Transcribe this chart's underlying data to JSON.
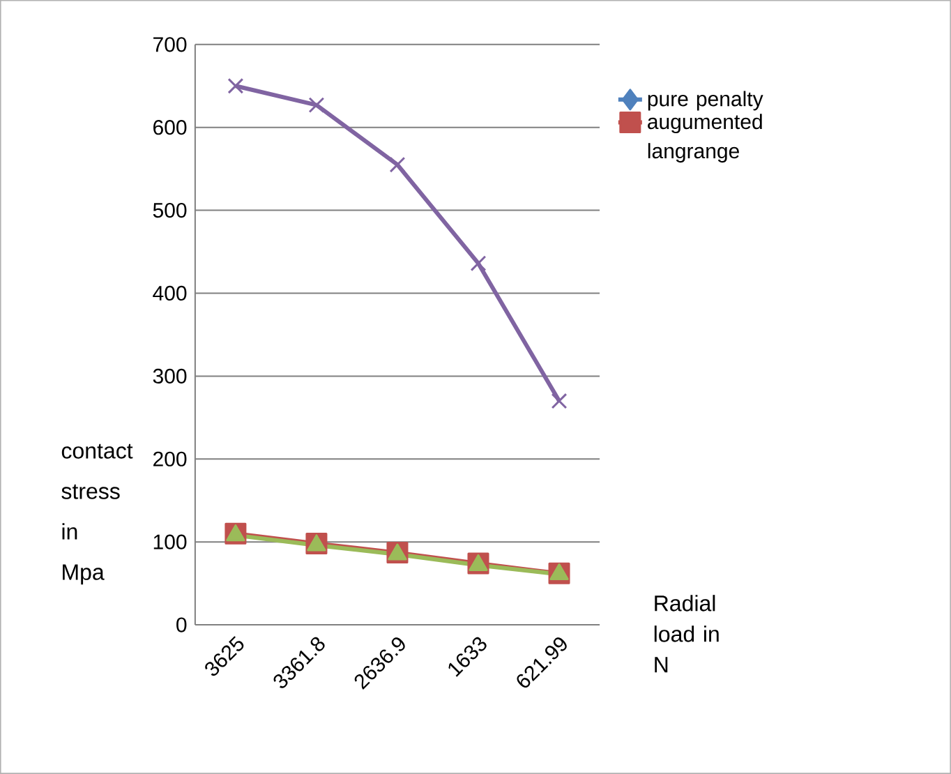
{
  "chart_data": {
    "type": "line",
    "xlabel": "Radial load in N",
    "ylabel": "contact stress in Mpa",
    "categories": [
      "3625",
      "3361.8",
      "2636.9",
      "1633",
      "621.99"
    ],
    "series": [
      {
        "name": "pure penalty",
        "color": "#4f81bd",
        "marker": "diamond",
        "values": [
          null,
          null,
          null,
          null,
          null
        ]
      },
      {
        "name": "augumented langrange",
        "color": "#c0504d",
        "marker": "square",
        "values": [
          110,
          98,
          87,
          74,
          62
        ]
      },
      {
        "color": "#9bbb59",
        "marker": "triangle",
        "values": [
          108,
          96,
          85,
          72,
          61
        ]
      },
      {
        "color": "#8064a2",
        "marker": "cross",
        "values": [
          650,
          627,
          555,
          436,
          270
        ]
      }
    ],
    "ylim": [
      0,
      700
    ],
    "yticks": [
      0,
      100,
      200,
      300,
      400,
      500,
      600,
      700
    ],
    "grid": "y",
    "legend": "right"
  }
}
